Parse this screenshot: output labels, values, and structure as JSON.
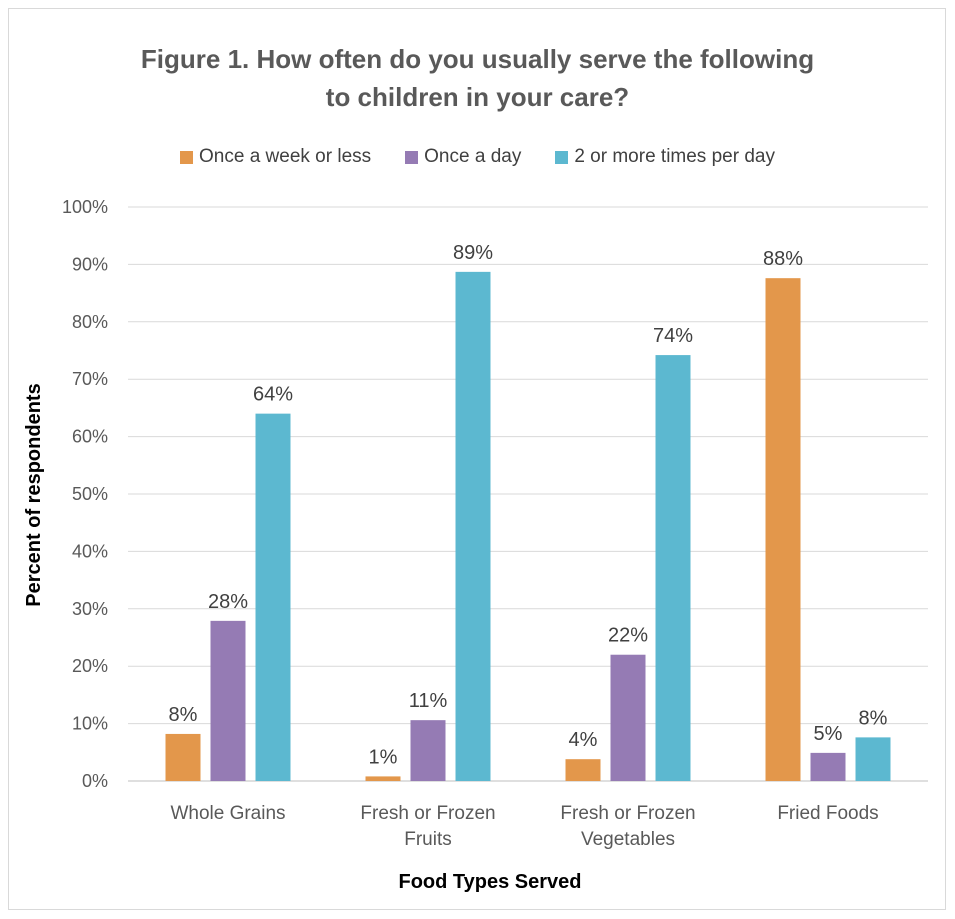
{
  "chart_data": {
    "type": "bar",
    "title_lines": [
      "Figure 1. How often do you usually serve the following",
      "to children in your care?"
    ],
    "xlabel": "Food Types Served",
    "ylabel": "Percent of respondents",
    "ylim": [
      0,
      100
    ],
    "yticks": [
      "0%",
      "10%",
      "20%",
      "30%",
      "40%",
      "50%",
      "60%",
      "70%",
      "80%",
      "90%",
      "100%"
    ],
    "categories": [
      [
        "Whole Grains"
      ],
      [
        "Fresh or Frozen",
        "Fruits"
      ],
      [
        "Fresh or Frozen",
        "Vegetables"
      ],
      [
        "Fried Foods"
      ]
    ],
    "series": [
      {
        "name": "Once a week or less",
        "color": "#E3974B",
        "values": [
          8.2,
          0.8,
          3.8,
          87.6
        ],
        "labels": [
          "8%",
          "1%",
          "4%",
          "88%"
        ]
      },
      {
        "name": "Once a day",
        "color": "#957BB4",
        "values": [
          27.9,
          10.6,
          22.0,
          4.9
        ],
        "labels": [
          "28%",
          "11%",
          "22%",
          "5%"
        ]
      },
      {
        "name": "2 or more times per day",
        "color": "#5CB8D0",
        "values": [
          64.0,
          88.7,
          74.2,
          7.6
        ],
        "labels": [
          "64%",
          "89%",
          "74%",
          "8%"
        ]
      }
    ],
    "grid": true,
    "legend_position": "top"
  }
}
